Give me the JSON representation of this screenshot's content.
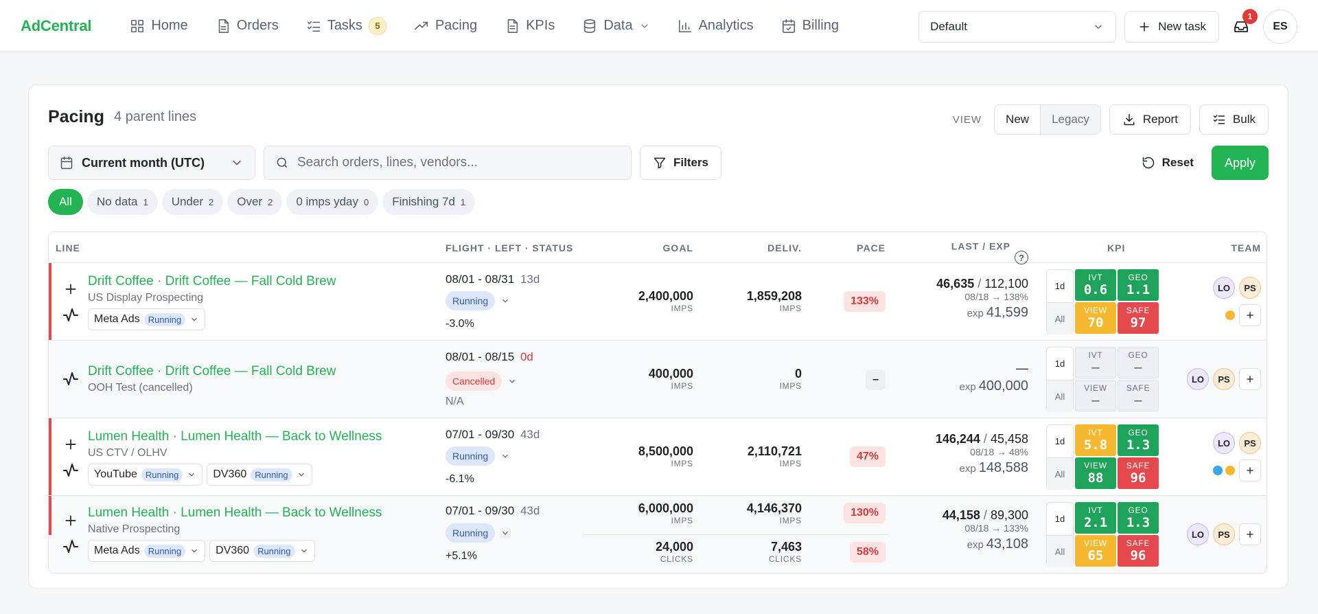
{
  "brand": "AdCentral",
  "nav": [
    {
      "label": "Home",
      "icon": "grid-icon"
    },
    {
      "label": "Orders",
      "icon": "document-icon"
    },
    {
      "label": "Tasks",
      "icon": "checklist-icon",
      "badge": "5"
    },
    {
      "label": "Pacing",
      "icon": "trending-icon"
    },
    {
      "label": "KPIs",
      "icon": "file-text-icon"
    },
    {
      "label": "Data",
      "icon": "database-icon",
      "dropdown": true
    },
    {
      "label": "Analytics",
      "icon": "bar-chart-icon"
    },
    {
      "label": "Billing",
      "icon": "calendar-check-icon"
    }
  ],
  "header": {
    "workspace": "Default",
    "new_task": "New task",
    "notifications": "1",
    "user_initials": "ES"
  },
  "page": {
    "title": "Pacing",
    "subtitle": "4 parent lines",
    "view_label": "VIEW",
    "view_new": "New",
    "view_legacy": "Legacy",
    "report": "Report",
    "bulk": "Bulk"
  },
  "filters": {
    "date_range": "Current month (UTC)",
    "search_placeholder": "Search orders, lines, vendors...",
    "filters_btn": "Filters",
    "reset": "Reset",
    "apply": "Apply"
  },
  "chips": [
    {
      "label": "All",
      "count": ""
    },
    {
      "label": "No data",
      "count": "1"
    },
    {
      "label": "Under",
      "count": "2"
    },
    {
      "label": "Over",
      "count": "2"
    },
    {
      "label": "0 imps yday",
      "count": "0"
    },
    {
      "label": "Finishing 7d",
      "count": "1"
    }
  ],
  "columns": {
    "line": "LINE",
    "flight": "FLIGHT · LEFT · STATUS",
    "goal": "GOAL",
    "deliv": "DELIV.",
    "pace": "PACE",
    "last_exp": "LAST / EXP",
    "kpi": "KPI",
    "team": "TEAM"
  },
  "rows": [
    {
      "title": "Drift Coffee · Drift Coffee — Fall Cold Brew",
      "sub": "US Display Prospecting",
      "vendors": [
        {
          "name": "Meta Ads",
          "status": "Running"
        }
      ],
      "flight": "08/01 - 08/31",
      "left": "13d",
      "status": "Running",
      "delta": "-3.0%",
      "goal": "2,400,000",
      "goal_unit": "IMPS",
      "deliv": "1,859,208",
      "deliv_unit": "IMPS",
      "pace": "133%",
      "last": "46,635",
      "exp_day": "112,100",
      "trend": "08/18 → 138%",
      "exp": "41,599",
      "kpi_1d": "1d",
      "kpi_all": "All",
      "kpi": {
        "ivt": "0.6",
        "geo": "1.1",
        "view": "70",
        "safe": "97"
      },
      "team": [
        "LO",
        "PS"
      ]
    },
    {
      "title": "Drift Coffee · Drift Coffee — Fall Cold Brew",
      "sub": "OOH Test (cancelled)",
      "flight": "08/01 - 08/15",
      "left": "0d",
      "status": "Cancelled",
      "delta": "N/A",
      "goal": "400,000",
      "goal_unit": "IMPS",
      "deliv": "0",
      "deliv_unit": "IMPS",
      "pace": "–",
      "last": "—",
      "exp": "400,000",
      "kpi_1d": "1d",
      "kpi_all": "All",
      "kpi": {
        "ivt": "–",
        "geo": "–",
        "view": "–",
        "safe": "–"
      },
      "team": [
        "LO",
        "PS"
      ]
    },
    {
      "title": "Lumen Health · Lumen Health — Back to Wellness",
      "sub": "US CTV / OLHV",
      "vendors": [
        {
          "name": "YouTube",
          "status": "Running"
        },
        {
          "name": "DV360",
          "status": "Running"
        }
      ],
      "flight": "07/01 - 09/30",
      "left": "43d",
      "status": "Running",
      "delta": "-6.1%",
      "goal": "8,500,000",
      "goal_unit": "IMPS",
      "deliv": "2,110,721",
      "deliv_unit": "IMPS",
      "pace": "47%",
      "last": "146,244",
      "exp_day": "45,458",
      "trend": "08/18 → 48%",
      "exp": "148,588",
      "kpi_1d": "1d",
      "kpi_all": "All",
      "kpi": {
        "ivt": "5.8",
        "geo": "1.3",
        "view": "88",
        "safe": "96"
      },
      "team": [
        "LO",
        "PS"
      ]
    },
    {
      "title": "Lumen Health · Lumen Health — Back to Wellness",
      "sub": "Native Prospecting",
      "vendors": [
        {
          "name": "Meta Ads",
          "status": "Running"
        },
        {
          "name": "DV360",
          "status": "Running"
        }
      ],
      "flight": "07/01 - 09/30",
      "left": "43d",
      "status": "Running",
      "delta": "+5.1%",
      "goal": "6,000,000",
      "goal_unit": "IMPS",
      "deliv": "4,146,370",
      "deliv_unit": "IMPS",
      "pace": "130%",
      "goal2": "24,000",
      "goal2_unit": "CLICKS",
      "deliv2": "7,463",
      "deliv2_unit": "CLICKS",
      "pace2": "58%",
      "last": "44,158",
      "exp_day": "89,300",
      "trend": "08/18 → 133%",
      "exp": "43,108",
      "kpi_1d": "1d",
      "kpi_all": "All",
      "kpi": {
        "ivt": "2.1",
        "geo": "1.3",
        "view": "65",
        "safe": "96"
      },
      "team": [
        "LO",
        "PS"
      ]
    }
  ],
  "kpi_labels": {
    "ivt": "IVT",
    "geo": "GEO",
    "view": "VIEW",
    "safe": "SAFE"
  },
  "exp_label": "exp",
  "colors": {
    "brand": "#22b453",
    "danger": "#e5484d",
    "warn": "#f5b82e",
    "ok": "#1fa35a"
  }
}
